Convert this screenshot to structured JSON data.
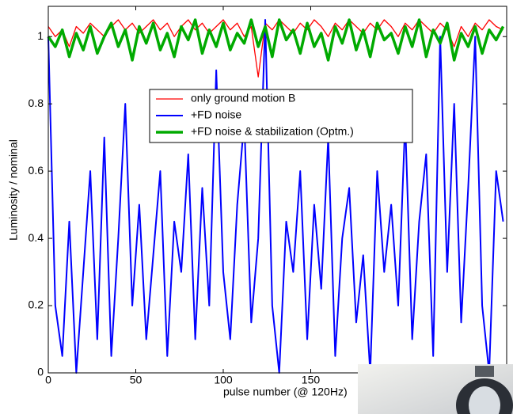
{
  "chart_data": {
    "type": "line",
    "x_label": "pulse number (@ 120Hz)",
    "y_label": "Luminosity / nominal",
    "xlim": [
      0,
      262
    ],
    "ylim": [
      0,
      1.09
    ],
    "xticks": [
      0,
      50,
      100,
      150
    ],
    "yticks": [
      0,
      0.2,
      0.4,
      0.6,
      0.8,
      1
    ],
    "x": [
      0,
      4,
      8,
      12,
      16,
      20,
      24,
      28,
      32,
      36,
      40,
      44,
      48,
      52,
      56,
      60,
      64,
      68,
      72,
      76,
      80,
      84,
      88,
      92,
      96,
      100,
      104,
      108,
      112,
      116,
      120,
      124,
      128,
      132,
      136,
      140,
      144,
      148,
      152,
      156,
      160,
      164,
      168,
      172,
      176,
      180,
      184,
      188,
      192,
      196,
      200,
      204,
      208,
      212,
      216,
      220,
      224,
      228,
      232,
      236,
      240,
      244,
      248,
      252,
      256,
      260
    ],
    "series": [
      {
        "name": "only ground motion B",
        "color": "#ff0000",
        "width": 1.3,
        "values": [
          1.03,
          1.0,
          1.02,
          0.97,
          1.03,
          1.01,
          1.04,
          1.02,
          1.0,
          1.03,
          1.05,
          1.02,
          1.04,
          1.01,
          1.03,
          1.05,
          1.02,
          1.04,
          1.0,
          1.03,
          1.05,
          1.02,
          1.04,
          1.01,
          1.03,
          1.05,
          1.02,
          1.04,
          1.0,
          1.03,
          0.88,
          1.04,
          1.02,
          1.05,
          1.03,
          1.01,
          1.04,
          1.02,
          1.05,
          1.03,
          1.0,
          1.04,
          1.02,
          1.05,
          1.03,
          1.01,
          1.04,
          1.02,
          1.05,
          1.03,
          1.0,
          1.04,
          1.02,
          1.05,
          1.03,
          1.01,
          1.04,
          1.02,
          0.97,
          1.03,
          1.0,
          1.04,
          1.02,
          1.05,
          1.03,
          1.02
        ]
      },
      {
        "name": "+FD noise",
        "color": "#0000ff",
        "width": 2,
        "values": [
          1.0,
          0.2,
          0.05,
          0.45,
          0.0,
          0.3,
          0.6,
          0.1,
          0.7,
          0.05,
          0.4,
          0.8,
          0.2,
          0.5,
          0.1,
          0.35,
          0.6,
          0.05,
          0.45,
          0.3,
          0.65,
          0.1,
          0.55,
          0.2,
          0.9,
          0.3,
          0.1,
          0.5,
          0.75,
          0.15,
          0.4,
          1.05,
          0.2,
          0.0,
          0.45,
          0.3,
          0.6,
          0.1,
          0.5,
          0.25,
          0.7,
          0.05,
          0.4,
          0.55,
          0.15,
          0.35,
          0.0,
          0.6,
          0.3,
          0.5,
          0.2,
          0.75,
          0.1,
          0.45,
          0.65,
          0.05,
          1.0,
          0.3,
          0.8,
          0.15,
          0.55,
          1.0,
          0.2,
          0.0,
          0.6,
          0.45
        ]
      },
      {
        "name": "+FD noise & stabilization (Optm.)",
        "color": "#00aa00",
        "width": 3.5,
        "values": [
          1.0,
          0.97,
          1.02,
          0.94,
          1.01,
          0.96,
          1.03,
          0.95,
          1.0,
          1.04,
          0.97,
          1.02,
          0.93,
          1.03,
          0.98,
          1.04,
          0.96,
          1.01,
          0.94,
          1.03,
          0.99,
          1.05,
          0.95,
          1.02,
          0.97,
          1.04,
          0.96,
          1.01,
          0.98,
          1.05,
          0.97,
          1.03,
          0.94,
          1.05,
          0.99,
          1.02,
          0.95,
          1.04,
          0.97,
          1.01,
          0.93,
          1.03,
          0.98,
          1.05,
          0.96,
          1.02,
          0.94,
          1.04,
          0.99,
          1.01,
          0.95,
          1.03,
          0.97,
          1.05,
          0.94,
          1.02,
          0.98,
          1.04,
          0.93,
          1.01,
          0.97,
          1.03,
          0.95,
          1.02,
          0.99,
          1.03
        ]
      }
    ]
  }
}
